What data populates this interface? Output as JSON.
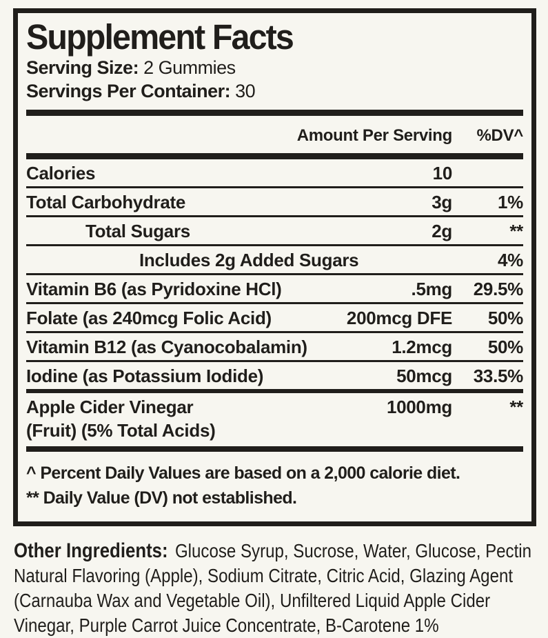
{
  "colors": {
    "ink": "#201e1b",
    "background": "#f7f6f0"
  },
  "panel": {
    "title": "Supplement Facts",
    "serving_size_label": "Serving Size:",
    "serving_size_value": "2 Gummies",
    "servings_per_container_label": "Servings Per Container:",
    "servings_per_container_value": "30",
    "column_headers": {
      "amount": "Amount Per Serving",
      "dv": "%DV^"
    },
    "rows": [
      {
        "label": "Calories",
        "amount": "10",
        "dv": ""
      },
      {
        "label": "Total Carbohydrate",
        "amount": "3g",
        "dv": "1%"
      },
      {
        "label": "Total Sugars",
        "indent": 1,
        "amount": "2g",
        "dv": "**"
      },
      {
        "label": "Includes 2g Added Sugars",
        "indent": 2,
        "amount": "",
        "dv": "4%"
      },
      {
        "label": "Vitamin B6 (as Pyridoxine HCl)",
        "amount": ".5mg",
        "dv": "29.5%"
      },
      {
        "label": "Folate (as 240mcg Folic Acid)",
        "amount": "200mcg DFE",
        "dv": "50%"
      },
      {
        "label": "Vitamin B12 (as Cyanocobalamin)",
        "amount": "1.2mcg",
        "dv": "50%"
      },
      {
        "label": "Iodine (as Potassium Iodide)",
        "amount": "50mcg",
        "dv": "33.5%",
        "divider": "medium"
      },
      {
        "label": "Apple Cider Vinegar",
        "label2": "(Fruit) (5% Total Acids)",
        "amount": "1000mg",
        "dv": "**",
        "divider": "none"
      }
    ],
    "footnotes": [
      "^ Percent Daily Values are based on a 2,000 calorie diet.",
      "** Daily Value (DV) not established."
    ]
  },
  "other_ingredients": {
    "label": "Other Ingredients:",
    "line1": "Glucose Syrup, Sucrose, Water, Glucose, Pectin",
    "line2": "Natural Flavoring (Apple), Sodium Citrate, Citric Acid, Glazing Agent",
    "line3": "(Carnauba Wax and Vegetable Oil), Unfiltered Liquid Apple Cider",
    "line4": "Vinegar, Purple Carrot Juice Concentrate, B-Carotene 1%"
  }
}
